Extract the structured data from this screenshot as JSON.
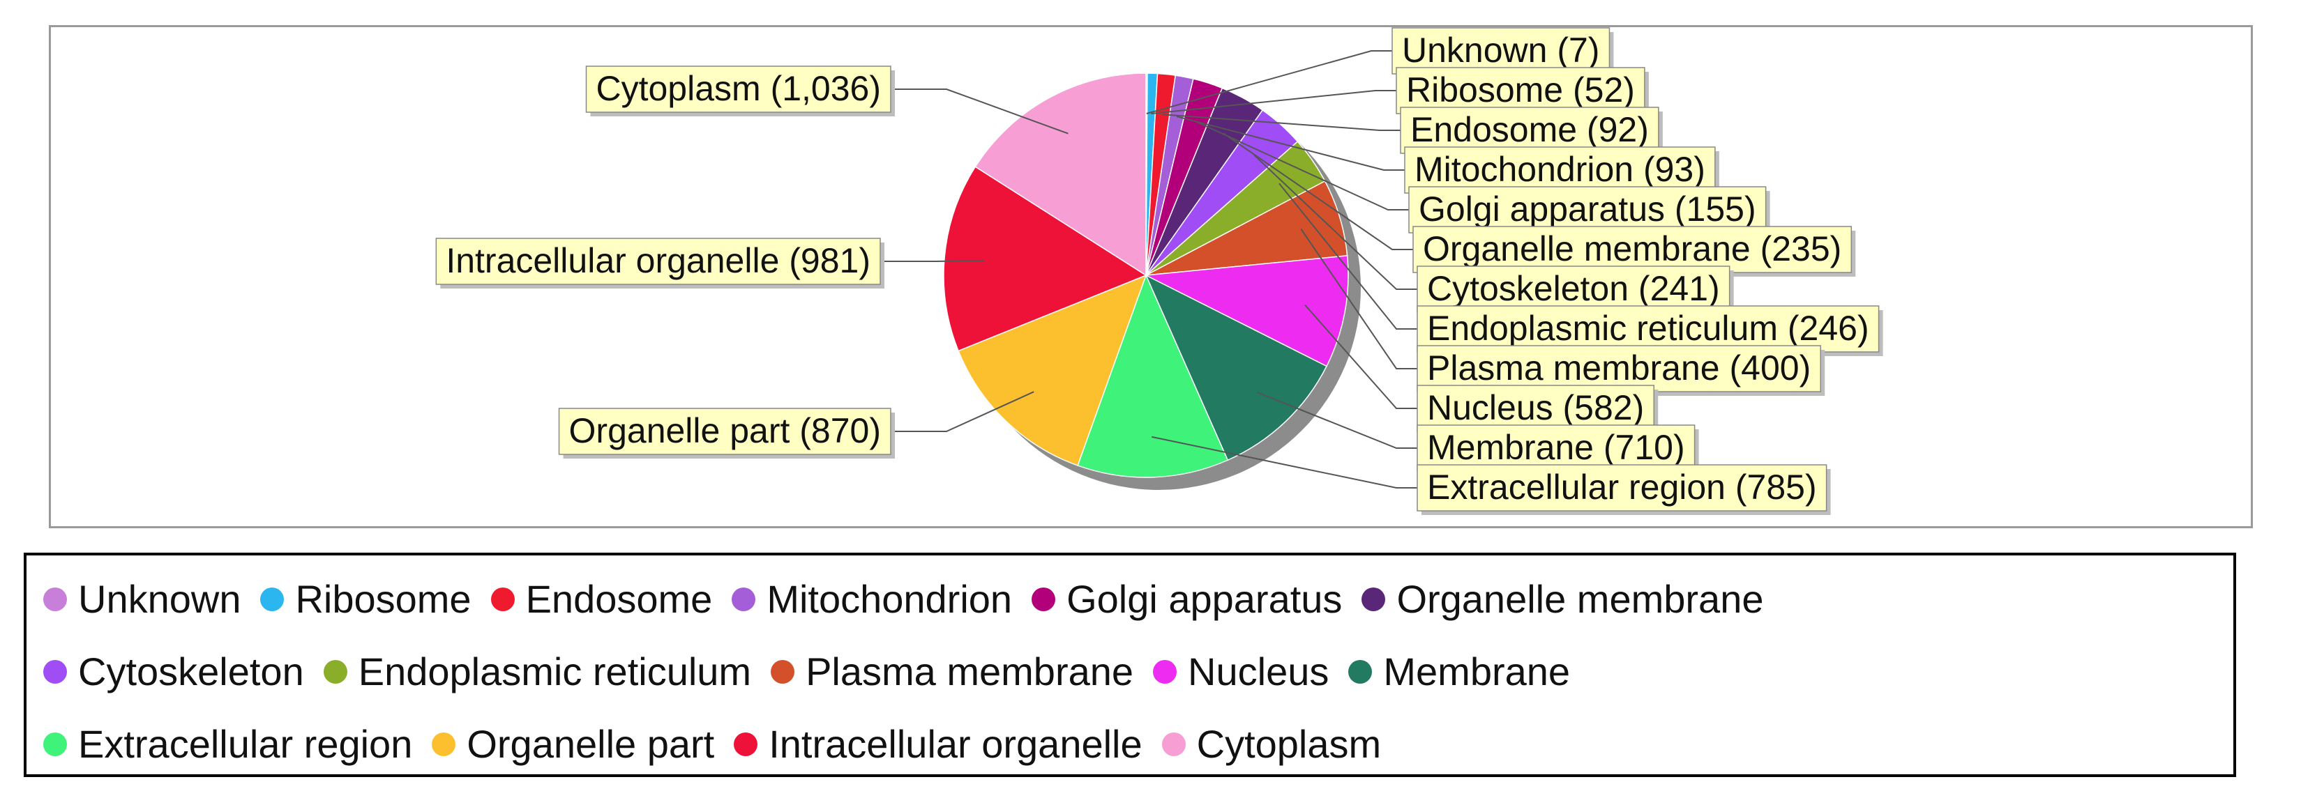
{
  "chart_data": {
    "type": "pie",
    "title": "",
    "series": [
      {
        "name": "Unknown",
        "value": 7,
        "label": "Unknown (7)",
        "color": "#C77FD9"
      },
      {
        "name": "Ribosome",
        "value": 52,
        "label": "Ribosome (52)",
        "color": "#2BB6F0"
      },
      {
        "name": "Endosome",
        "value": 92,
        "label": "Endosome (92)",
        "color": "#F01A2E"
      },
      {
        "name": "Mitochondrion",
        "value": 93,
        "label": "Mitochondrion (93)",
        "color": "#A45FD8"
      },
      {
        "name": "Golgi apparatus",
        "value": 155,
        "label": "Golgi apparatus (155)",
        "color": "#B2007A"
      },
      {
        "name": "Organelle membrane",
        "value": 235,
        "label": "Organelle membrane (235)",
        "color": "#5A2678"
      },
      {
        "name": "Cytoskeleton",
        "value": 241,
        "label": "Cytoskeleton (241)",
        "color": "#A04DF5"
      },
      {
        "name": "Endoplasmic reticulum",
        "value": 246,
        "label": "Endoplasmic reticulum (246)",
        "color": "#8AAE2A"
      },
      {
        "name": "Plasma membrane",
        "value": 400,
        "label": "Plasma membrane (400)",
        "color": "#D4502A"
      },
      {
        "name": "Nucleus",
        "value": 582,
        "label": "Nucleus (582)",
        "color": "#EE2BF0"
      },
      {
        "name": "Membrane",
        "value": 710,
        "label": "Membrane (710)",
        "color": "#227A60"
      },
      {
        "name": "Extracellular region",
        "value": 785,
        "label": "Extracellular region (785)",
        "color": "#3FF27A"
      },
      {
        "name": "Organelle part",
        "value": 870,
        "label": "Organelle part (870)",
        "color": "#FCC02E"
      },
      {
        "name": "Intracellular organelle",
        "value": 981,
        "label": "Intracellular organelle (981)",
        "color": "#EE1238"
      },
      {
        "name": "Cytoplasm",
        "value": 1036,
        "label": "Cytoplasm (1,036)",
        "color": "#F79ED5"
      }
    ],
    "legend": {
      "position": "bottom",
      "rows": [
        [
          0,
          1,
          2,
          3,
          4,
          5
        ],
        [
          6,
          7,
          8,
          9,
          10
        ],
        [
          11,
          12,
          13,
          14
        ]
      ]
    },
    "label_style": {
      "background": "#FFFFC4",
      "border": "#888888"
    }
  }
}
